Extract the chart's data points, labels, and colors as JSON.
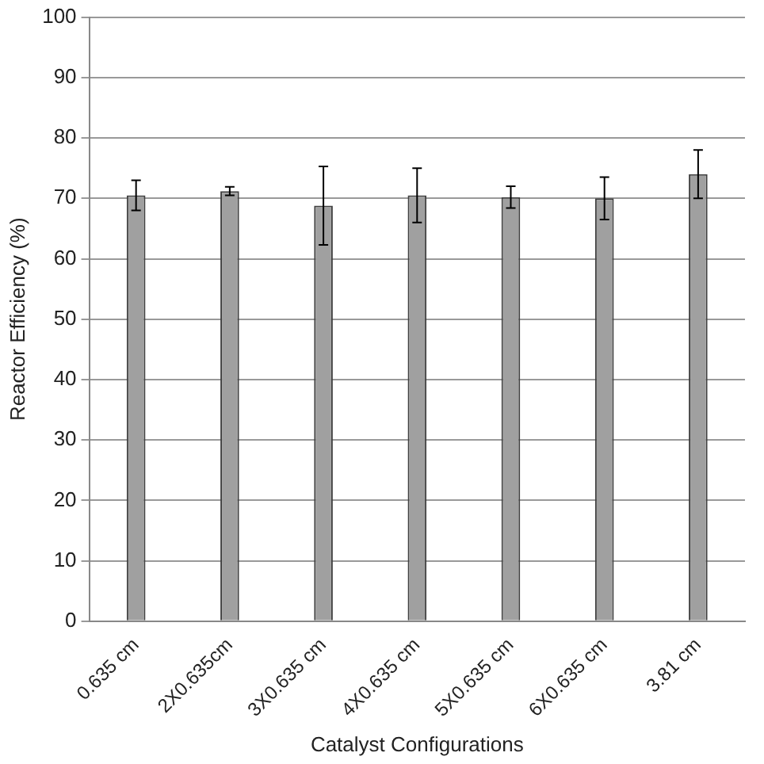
{
  "chart_data": {
    "type": "bar",
    "xlabel": "Catalyst Configurations",
    "ylabel": "Reactor Efficiency (%)",
    "categories": [
      "0.635 cm",
      "2X0.635cm",
      "3X0.635 cm",
      "4X0.635 cm",
      "5X0.635 cm",
      "6X0.635 cm",
      "3.81 cm"
    ],
    "values": [
      70.5,
      71.2,
      68.8,
      70.5,
      70.2,
      70,
      74
    ],
    "errors": [
      2.5,
      0.7,
      6.5,
      4.5,
      1.8,
      3.5,
      4
    ],
    "color": "#a0a0a0",
    "ylim": [
      0,
      100
    ],
    "yticks": [
      0,
      10,
      20,
      30,
      40,
      50,
      60,
      70,
      80,
      90,
      100
    ],
    "grid": "y",
    "legend": false
  }
}
